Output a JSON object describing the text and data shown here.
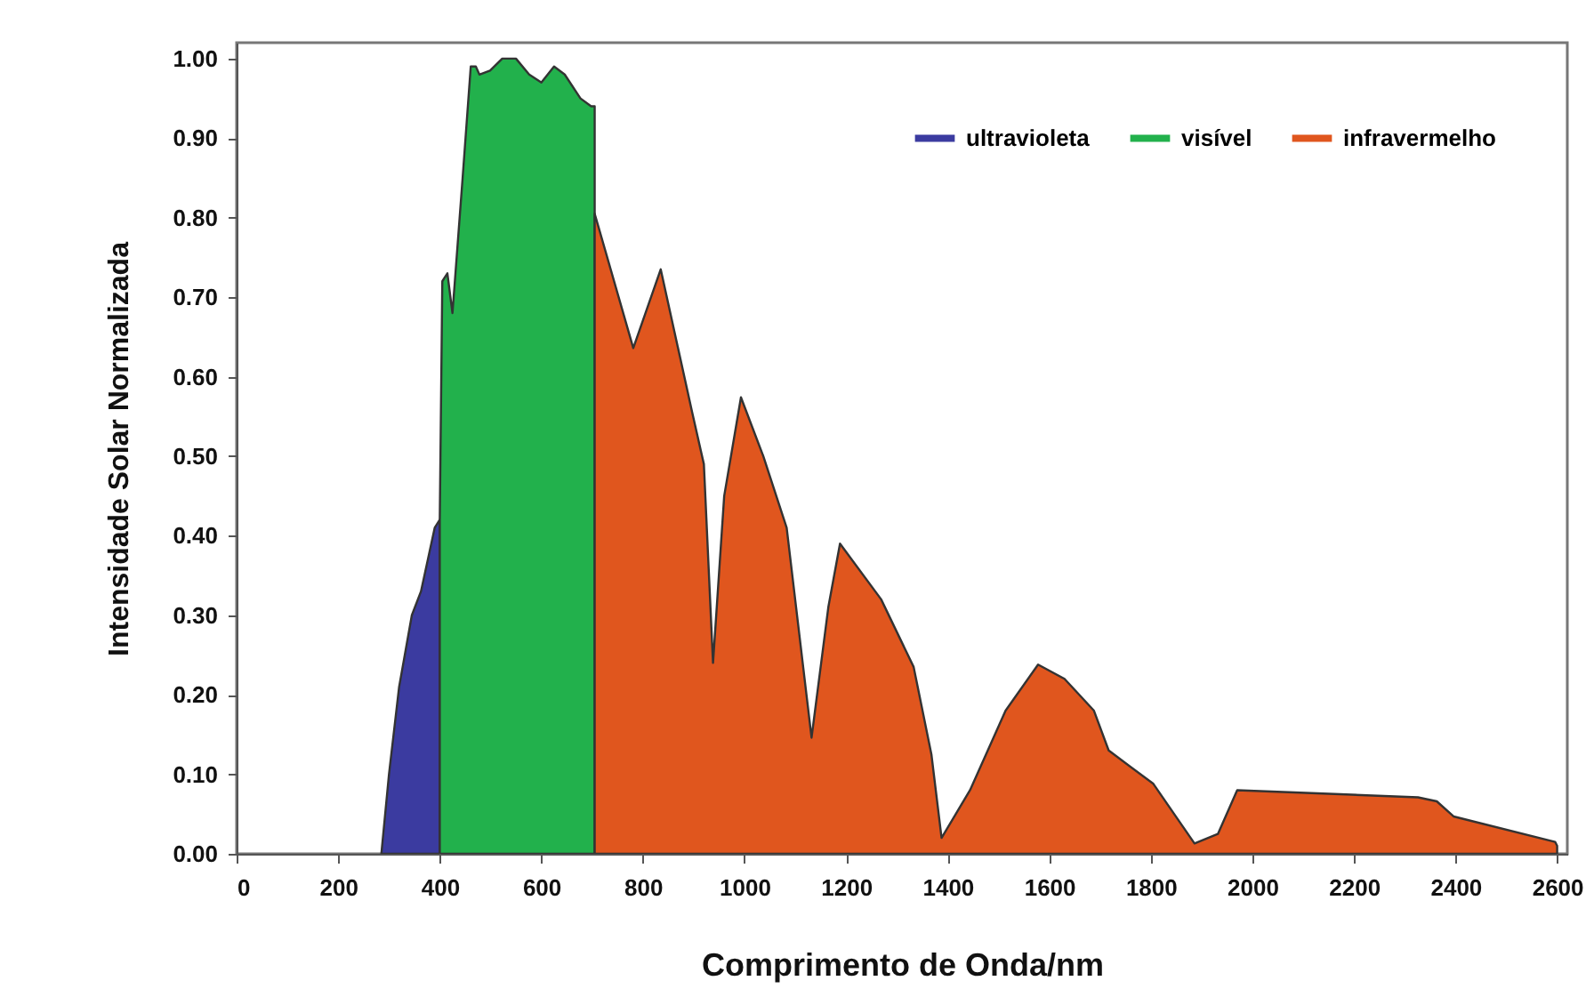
{
  "chart_data": {
    "type": "area",
    "xlabel": "Comprimento de Onda/nm",
    "ylabel": "Intensidade Solar Normalizada",
    "xlim": [
      0,
      2620
    ],
    "ylim": [
      0,
      1.02
    ],
    "xticks": [
      0,
      200,
      400,
      600,
      800,
      1000,
      1200,
      1400,
      1600,
      1800,
      2000,
      2200,
      2400,
      2600
    ],
    "yticks": [
      {
        "value": 0,
        "label": "0.00"
      },
      {
        "value": 0.1,
        "label": "0.10"
      },
      {
        "value": 0.2,
        "label": "0.20"
      },
      {
        "value": 0.3,
        "label": "0.30"
      },
      {
        "value": 0.4,
        "label": "0.40"
      },
      {
        "value": 0.5,
        "label": "0.50"
      },
      {
        "value": 0.6,
        "label": "0.60"
      },
      {
        "value": 0.7,
        "label": "0.70"
      },
      {
        "value": 0.8,
        "label": "0.80"
      },
      {
        "value": 0.9,
        "label": "0.90"
      },
      {
        "value": 1,
        "label": "1.00"
      }
    ],
    "grid": false,
    "legend": "top right",
    "series": [
      {
        "name": "ultravioleta",
        "color": "#3b3ba0",
        "x": [
          285,
          300,
          320,
          345,
          363,
          390,
          400
        ],
        "values": [
          0,
          0.1,
          0.21,
          0.3,
          0.33,
          0.41,
          0.42
        ]
      },
      {
        "name": "visível",
        "color": "#22b14c",
        "x": [
          400,
          405,
          415,
          425,
          445,
          461,
          471,
          478,
          499,
          523,
          550,
          576,
          600,
          625,
          646,
          677,
          698,
          705
        ],
        "values": [
          0.42,
          0.72,
          0.73,
          0.68,
          0.85,
          0.99,
          0.99,
          0.98,
          0.985,
          1.0,
          1.0,
          0.98,
          0.97,
          0.99,
          0.98,
          0.95,
          0.94,
          0.94
        ]
      },
      {
        "name": "infravermelho",
        "color": "#e0561e",
        "x": [
          705,
          781,
          835,
          897,
          920,
          938,
          960,
          993,
          1037,
          1083,
          1132,
          1165,
          1188,
          1269,
          1333,
          1368,
          1388,
          1444,
          1514,
          1578,
          1630,
          1688,
          1717,
          1805,
          1886,
          1932,
          1970,
          2326,
          2363,
          2396,
          2596,
          2600
        ],
        "values": [
          0.805,
          0.636,
          0.735,
          0.555,
          0.49,
          0.24,
          0.45,
          0.574,
          0.5,
          0.41,
          0.146,
          0.31,
          0.39,
          0.32,
          0.235,
          0.125,
          0.02,
          0.08,
          0.18,
          0.238,
          0.22,
          0.18,
          0.13,
          0.088,
          0.013,
          0.025,
          0.08,
          0.071,
          0.066,
          0.047,
          0.015,
          0.01
        ]
      }
    ]
  }
}
